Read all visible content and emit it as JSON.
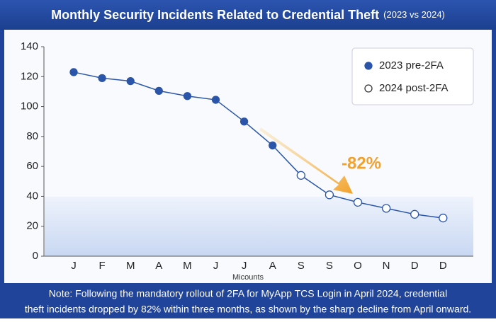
{
  "chart_data": {
    "type": "line",
    "title": "Monthly Security Incidents Related to Credential Theft",
    "subtitle": "(2023 vs 2024)",
    "x_label": "Micounts",
    "categories": [
      "J",
      "F",
      "M",
      "A",
      "M",
      "J",
      "J",
      "A",
      "S",
      "S",
      "O",
      "N",
      "D",
      "D"
    ],
    "series": [
      {
        "name": "2023 pre-2FA",
        "color": "#2a55a8",
        "marker": "filled",
        "values": [
          123,
          119,
          117,
          110.5,
          107,
          104.5,
          90,
          74,
          null,
          null,
          null,
          null,
          null,
          null
        ]
      },
      {
        "name": "2024 post-2FA",
        "color": "#2a55a8",
        "marker": "hollow",
        "values": [
          null,
          null,
          null,
          null,
          null,
          null,
          null,
          null,
          54,
          41,
          36,
          32,
          28,
          25.5
        ]
      }
    ],
    "ylim": [
      0,
      140
    ],
    "yticks": [
      0,
      20,
      40,
      60,
      80,
      100,
      120,
      140
    ],
    "grid": false,
    "legend": "upper right",
    "annotation": "-82%",
    "note": [
      "Note: Following the mandatory rollout of  2FA for MyApp TCS Login in April 2024, credential",
      "theft incidents dropped by 82% within three months, as shown by the sharp decline from April onward."
    ]
  }
}
